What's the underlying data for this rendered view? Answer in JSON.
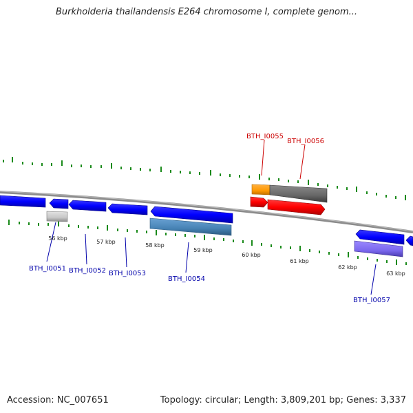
{
  "title": "Burkholderia thailandensis E264 chromosome I, complete genom...",
  "footer": {
    "accession": "Accession: NC_007651",
    "summary": "Topology: circular; Length: 3,809,201 bp; Genes: 3,337"
  },
  "scale_labels": [
    "56 kbp",
    "57 kbp",
    "58 kbp",
    "59 kbp",
    "60 kbp",
    "61 kbp",
    "62 kbp",
    "63 kbp"
  ],
  "gene_labels_forward": [
    "BTH_I0055",
    "BTH_I0056"
  ],
  "gene_labels_reverse": [
    "BTH_I0051",
    "BTH_I0052",
    "BTH_I0053",
    "BTH_I0054",
    "BTH_I0057"
  ],
  "colors": {
    "forward_label": "#cc0000",
    "reverse_label": "#0000aa",
    "tick": "#1a8a1a",
    "backbone": "#8c8c8c",
    "reverse_cds": "#0000ff",
    "forward_cds": "#ff0000",
    "orange_feature": "#ff9900",
    "gray_feature": "#666666",
    "steelblue_feature": "#4682b4",
    "slateblue_feature": "#7b68ee",
    "lightgray_feature": "#c8c8c8"
  }
}
